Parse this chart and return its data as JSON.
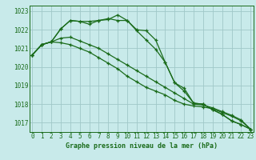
{
  "xlabel": "Graphe pression niveau de la mer (hPa)",
  "bg_color": "#c8eaea",
  "grid_color": "#a0c8c8",
  "line_color": "#1a6b1a",
  "hours": [
    0,
    1,
    2,
    3,
    4,
    5,
    6,
    7,
    8,
    9,
    10,
    11,
    12,
    13,
    14,
    15,
    16,
    17,
    18,
    19,
    20,
    21,
    22,
    23
  ],
  "series": [
    [
      1020.65,
      1021.2,
      1021.35,
      1022.05,
      1022.5,
      1022.45,
      1022.45,
      1022.5,
      1022.55,
      1022.8,
      1022.5,
      1021.95,
      1021.45,
      1020.95,
      1020.25,
      1019.15,
      1018.85,
      1018.05,
      1018.0,
      1017.7,
      1017.45,
      1017.1,
      1016.9,
      1016.65
    ],
    [
      1020.65,
      1021.2,
      1021.35,
      1022.05,
      1022.5,
      1022.45,
      1022.3,
      1022.5,
      1022.6,
      1022.5,
      1022.5,
      1022.0,
      1021.95,
      1021.45,
      1020.25,
      1019.15,
      1018.7,
      1018.05,
      1018.0,
      1017.7,
      1017.45,
      1017.1,
      1016.9,
      1016.65
    ],
    [
      1020.65,
      1021.2,
      1021.35,
      1021.55,
      1021.6,
      1021.4,
      1021.2,
      1021.0,
      1020.7,
      1020.4,
      1020.1,
      1019.8,
      1019.5,
      1019.2,
      1018.9,
      1018.6,
      1018.3,
      1018.0,
      1017.95,
      1017.8,
      1017.6,
      1017.4,
      1017.15,
      1016.65
    ],
    [
      1020.65,
      1021.2,
      1021.35,
      1021.3,
      1021.2,
      1021.0,
      1020.8,
      1020.5,
      1020.2,
      1019.9,
      1019.5,
      1019.2,
      1018.9,
      1018.7,
      1018.5,
      1018.2,
      1018.0,
      1017.9,
      1017.85,
      1017.75,
      1017.55,
      1017.35,
      1017.1,
      1016.65
    ]
  ],
  "ylim": [
    1016.5,
    1023.3
  ],
  "yticks": [
    1017,
    1018,
    1019,
    1020,
    1021,
    1022,
    1023
  ],
  "marker": "+",
  "markersize": 3,
  "linewidth": 0.9,
  "tick_fontsize": 5.5,
  "xlabel_fontsize": 6.0
}
